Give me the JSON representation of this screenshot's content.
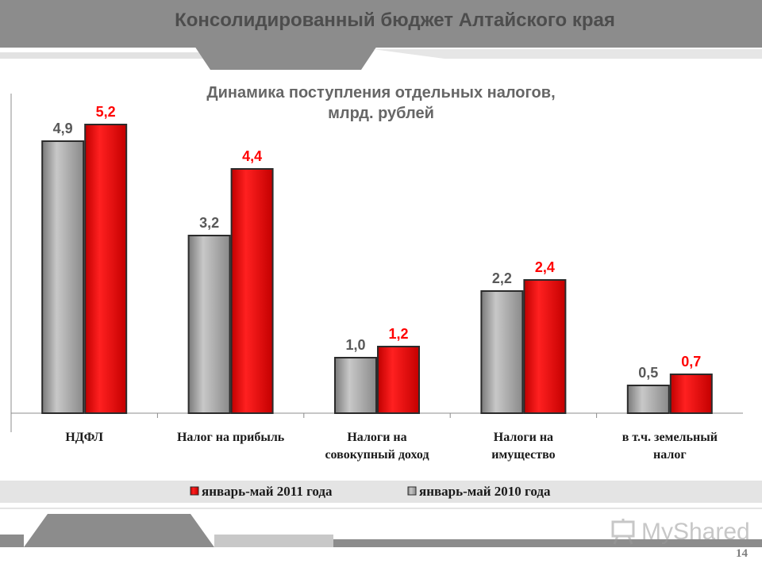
{
  "header": {
    "title": "Консолидированный бюджет Алтайского края"
  },
  "page_number": "14",
  "watermark": {
    "text": "MyShared",
    "icon": "presentation-board-icon"
  },
  "colors": {
    "series_2011": "#ff0000",
    "series_2010": "#a6a6a6",
    "label_2011": "#ff0000",
    "label_2010": "#595959",
    "banner": "#8c8c8c"
  },
  "chart_data": {
    "type": "bar",
    "title": [
      "Динамика поступления отдельных налогов,",
      "млрд. рублей"
    ],
    "categories": [
      [
        "НДФЛ"
      ],
      [
        "Налог на прибыль"
      ],
      [
        "Налоги на",
        "совокупный доход"
      ],
      [
        "Налоги на",
        "имущество"
      ],
      [
        "в т.ч. земельный",
        "налог"
      ]
    ],
    "series": [
      {
        "name": "январь-май 2010 года",
        "values": [
          4.9,
          3.2,
          1.0,
          2.2,
          0.5
        ],
        "labels": [
          "4,9",
          "3,2",
          "1,0",
          "2,2",
          "0,5"
        ]
      },
      {
        "name": "январь-май 2011 года",
        "values": [
          5.2,
          4.4,
          1.2,
          2.4,
          0.7
        ],
        "labels": [
          "5,2",
          "4,4",
          "1,2",
          "2,4",
          "0,7"
        ]
      }
    ],
    "legend": {
      "position": "bottom",
      "order": [
        "январь-май 2011 года",
        "январь-май 2010 года"
      ]
    },
    "xlabel": "",
    "ylabel": "",
    "ylim": [
      0,
      5.2
    ],
    "grid": false
  }
}
